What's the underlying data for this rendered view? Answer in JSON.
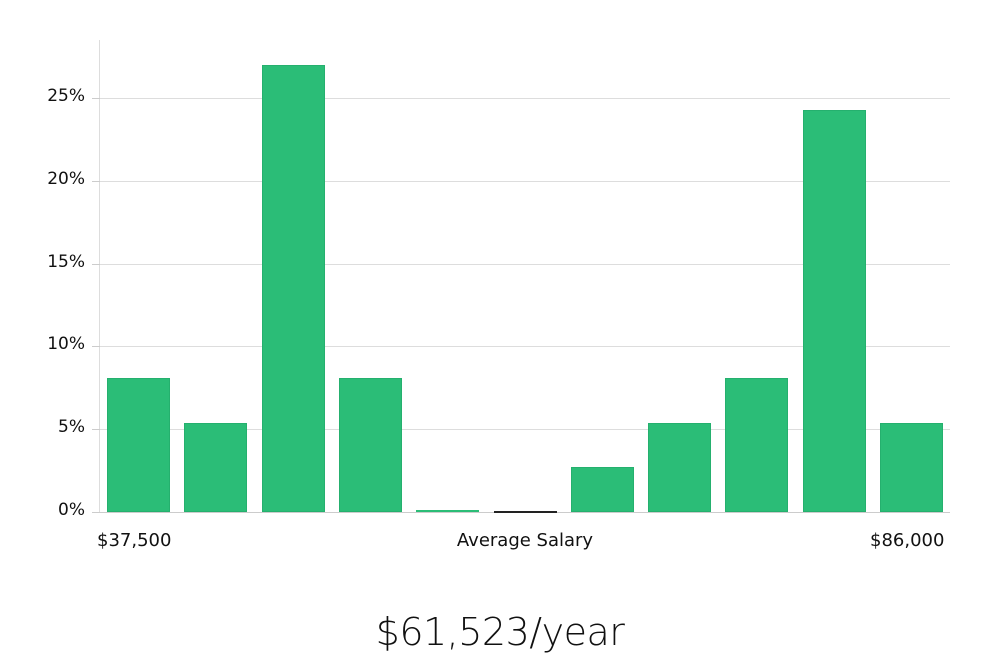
{
  "chart_data": {
    "type": "bar",
    "title": "",
    "xlabel": "Average Salary",
    "ylabel": "",
    "x_range_labels": {
      "min": "$37,500",
      "max": "$86,000"
    },
    "categories": [
      "bin1",
      "bin2",
      "bin3",
      "bin4",
      "bin5",
      "bin6",
      "bin7",
      "bin8",
      "bin9",
      "bin10",
      "bin11"
    ],
    "values": [
      8.1,
      5.4,
      27.0,
      8.1,
      0.0,
      0.0,
      2.7,
      5.4,
      8.1,
      24.3,
      5.4
    ],
    "ylim": [
      0,
      28
    ],
    "yticks": [
      "0%",
      "5%",
      "10%",
      "15%",
      "20%",
      "25%"
    ],
    "grid": true,
    "bar_color": "#2bbd77",
    "highlight_bin_index": 5,
    "highlight_color": "#222222"
  },
  "axis": {
    "x_min_label": "$37,500",
    "x_center_label": "Average Salary",
    "x_max_label": "$86,000",
    "y_ticks": [
      "0%",
      "5%",
      "10%",
      "15%",
      "20%",
      "25%"
    ]
  },
  "headline": "$61,523/year"
}
